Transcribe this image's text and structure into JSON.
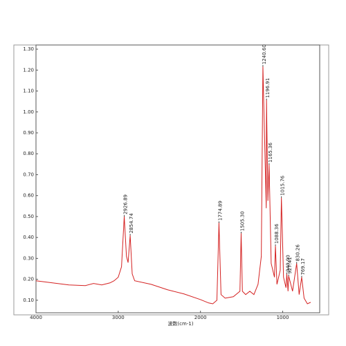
{
  "chart_data": {
    "type": "line",
    "x_label": "波数(cm-1)",
    "xlim": [
      4000,
      550
    ],
    "ylim": [
      0.04,
      1.32
    ],
    "xticks": [
      4000,
      3000,
      2000,
      1000
    ],
    "yticks": [
      {
        "value": 0.1,
        "label": "0.10"
      },
      {
        "value": 0.2,
        "label": "0.20"
      },
      {
        "value": 0.3,
        "label": "0.30"
      },
      {
        "value": 0.4,
        "label": "0.40"
      },
      {
        "value": 0.5,
        "label": "0.50"
      },
      {
        "value": 0.6,
        "label": "0.60"
      },
      {
        "value": 0.7,
        "label": "0.70"
      },
      {
        "value": 0.8,
        "label": "0.80"
      },
      {
        "value": 0.9,
        "label": "0.90"
      },
      {
        "value": 1.0,
        "label": "1.00"
      },
      {
        "value": 1.1,
        "label": "1.10"
      },
      {
        "value": 1.2,
        "label": "1.20"
      },
      {
        "value": 1.3,
        "label": "1.30"
      }
    ],
    "series": [
      {
        "color": "#d42020",
        "x": [
          4000,
          3800,
          3600,
          3400,
          3300,
          3200,
          3100,
          3050,
          3000,
          2960,
          2926.89,
          2900,
          2880,
          2854.74,
          2830,
          2800,
          2600,
          2400,
          2200,
          2000,
          1900,
          1850,
          1800,
          1774.89,
          1750,
          1700,
          1600,
          1520,
          1505.3,
          1490,
          1450,
          1400,
          1350,
          1300,
          1260,
          1240.6,
          1220,
          1200,
          1196.91,
          1180,
          1165.36,
          1140,
          1100,
          1088.36,
          1070,
          1030,
          1015.76,
          990,
          960,
          949.9,
          935,
          927.41,
          880,
          830.26,
          800,
          769.17,
          740,
          700,
          660
        ],
        "values": [
          0.193,
          0.183,
          0.173,
          0.17,
          0.18,
          0.173,
          0.183,
          0.193,
          0.21,
          0.26,
          0.5,
          0.31,
          0.28,
          0.41,
          0.226,
          0.193,
          0.176,
          0.15,
          0.13,
          0.103,
          0.087,
          0.083,
          0.1,
          0.47,
          0.127,
          0.11,
          0.117,
          0.143,
          0.42,
          0.143,
          0.127,
          0.143,
          0.127,
          0.176,
          0.31,
          1.217,
          0.87,
          0.54,
          1.057,
          0.575,
          0.748,
          0.276,
          0.21,
          0.36,
          0.176,
          0.243,
          0.59,
          0.21,
          0.16,
          0.226,
          0.143,
          0.216,
          0.143,
          0.276,
          0.127,
          0.21,
          0.11,
          0.083,
          0.09
        ]
      }
    ],
    "annotations": [
      {
        "x": 2926.89,
        "y": 0.5,
        "label": "2926.89"
      },
      {
        "x": 2854.74,
        "y": 0.41,
        "label": "2854.74"
      },
      {
        "x": 1774.89,
        "y": 0.47,
        "label": "1774.89"
      },
      {
        "x": 1505.3,
        "y": 0.42,
        "label": "1505.30"
      },
      {
        "x": 1240.6,
        "y": 1.217,
        "label": "1240.60"
      },
      {
        "x": 1196.91,
        "y": 1.057,
        "label": "1196.91"
      },
      {
        "x": 1165.36,
        "y": 0.748,
        "label": "1165.36"
      },
      {
        "x": 1088.36,
        "y": 0.36,
        "label": "1088.36"
      },
      {
        "x": 1015.76,
        "y": 0.59,
        "label": "1015.76"
      },
      {
        "x": 949.9,
        "y": 0.226,
        "label": "949.90"
      },
      {
        "x": 927.41,
        "y": 0.216,
        "label": "927.41"
      },
      {
        "x": 830.26,
        "y": 0.276,
        "label": "830.26"
      },
      {
        "x": 769.17,
        "y": 0.21,
        "label": "769.17"
      }
    ]
  }
}
